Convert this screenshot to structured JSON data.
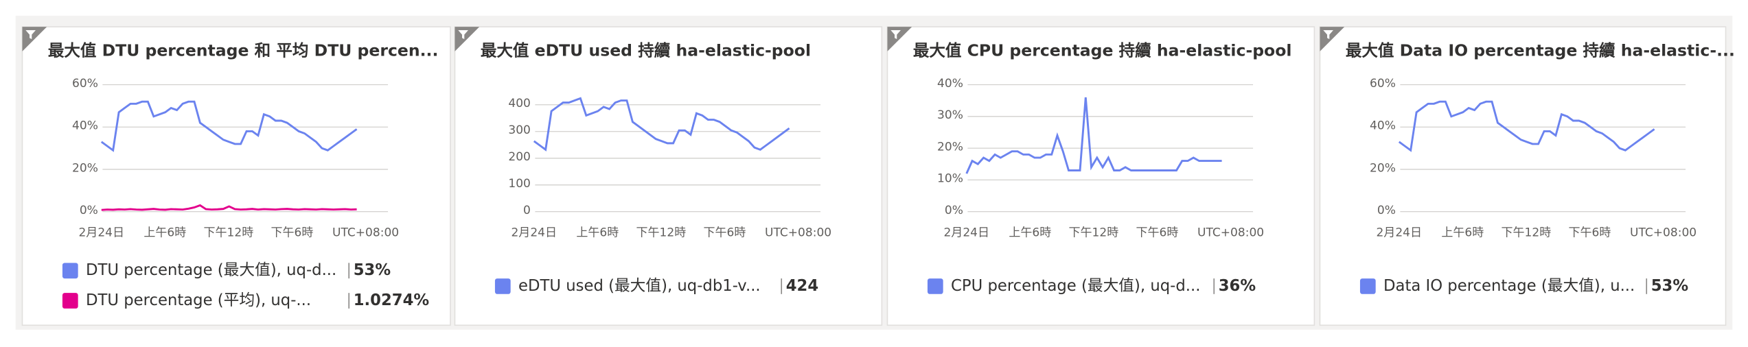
{
  "chart_data": [
    {
      "type": "line",
      "title": "最大值 DTU percentage 和 平均 DTU percen...",
      "xticks": [
        "2月24日",
        "上午6時",
        "下午12時",
        "下午6時"
      ],
      "timezone": "UTC+08:00",
      "ylim": [
        0,
        60
      ],
      "yticks": [
        {
          "value": 0,
          "label": "0%"
        },
        {
          "value": 20,
          "label": "20%"
        },
        {
          "value": 40,
          "label": "40%"
        },
        {
          "value": 60,
          "label": "60%"
        }
      ],
      "grid": true,
      "series": [
        {
          "name": "DTU percentage (最大值), uq-d...",
          "color": "#6b83ef",
          "summary": {
            "value": 53,
            "label": "53%"
          },
          "values": [
            33,
            31,
            29,
            47,
            49,
            51,
            51,
            52,
            52,
            45,
            46,
            47,
            49,
            48,
            51,
            52,
            52,
            42,
            40,
            38,
            36,
            34,
            33,
            32,
            32,
            38,
            38,
            36,
            46,
            45,
            43,
            43,
            42,
            40,
            38,
            37,
            35,
            33,
            30,
            29,
            31,
            33,
            35,
            37,
            39
          ]
        },
        {
          "name": "DTU percentage (平均), uq-...",
          "color": "#e3008c",
          "summary": {
            "value": 1.0274,
            "label": "1.0274%"
          },
          "values": [
            0.8,
            1,
            0.9,
            1.1,
            1,
            1.2,
            1,
            0.9,
            1.1,
            1.3,
            1,
            0.9,
            1.2,
            1.1,
            1,
            1.4,
            2,
            3,
            1.2,
            1,
            1.1,
            1.3,
            2.5,
            1.2,
            1,
            1.1,
            1.3,
            1,
            1.2,
            1.1,
            1,
            1.2,
            1.3,
            1.1,
            1,
            1.2,
            1.1,
            1,
            1.2,
            1.1,
            1,
            1.1,
            1.2,
            1,
            1.1
          ]
        }
      ]
    },
    {
      "type": "line",
      "title": "最大值 eDTU used 持續 ha-elastic-pool",
      "xticks": [
        "2月24日",
        "上午6時",
        "下午12時",
        "下午6時"
      ],
      "timezone": "UTC+08:00",
      "ylim": [
        0,
        475
      ],
      "yticks": [
        0,
        100,
        200,
        300,
        400
      ],
      "grid": true,
      "series": [
        {
          "name": "eDTU used (最大值), uq-db1-v...",
          "color": "#6b83ef",
          "summary": {
            "value": 424,
            "label": "424"
          },
          "values": [
            264,
            248,
            232,
            376,
            392,
            408,
            408,
            416,
            424,
            360,
            368,
            376,
            392,
            384,
            408,
            416,
            416,
            336,
            320,
            304,
            288,
            272,
            264,
            256,
            256,
            304,
            304,
            288,
            368,
            360,
            344,
            344,
            336,
            320,
            304,
            296,
            280,
            264,
            240,
            232,
            248,
            264,
            280,
            296,
            312
          ]
        }
      ]
    },
    {
      "type": "line",
      "title": "最大值 CPU percentage 持續 ha-elastic-pool",
      "xticks": [
        "2月24日",
        "上午6時",
        "下午12時",
        "下午6時"
      ],
      "timezone": "UTC+08:00",
      "ylim": [
        0,
        40
      ],
      "yticks": [
        {
          "value": 0,
          "label": "0%"
        },
        {
          "value": 10,
          "label": "10%"
        },
        {
          "value": 20,
          "label": "20%"
        },
        {
          "value": 30,
          "label": "30%"
        },
        {
          "value": 40,
          "label": "40%"
        }
      ],
      "grid": true,
      "series": [
        {
          "name": "CPU percentage (最大值), uq-d...",
          "color": "#6b83ef",
          "summary": {
            "value": 36,
            "label": "36%"
          },
          "values": [
            12,
            16,
            15,
            17,
            16,
            18,
            17,
            18,
            19,
            19,
            18,
            18,
            17,
            17,
            18,
            18,
            24,
            19,
            13,
            13,
            13,
            36,
            14,
            17,
            14,
            17,
            13,
            13,
            14,
            13,
            13,
            13,
            13,
            13,
            13,
            13,
            13,
            13,
            16,
            16,
            17,
            16,
            16,
            16,
            16,
            16
          ]
        }
      ]
    },
    {
      "type": "line",
      "title": "最大值 Data IO percentage 持續 ha-elastic-...",
      "xticks": [
        "2月24日",
        "上午6時",
        "下午12時",
        "下午6時"
      ],
      "timezone": "UTC+08:00",
      "ylim": [
        0,
        60
      ],
      "yticks": [
        {
          "value": 0,
          "label": "0%"
        },
        {
          "value": 20,
          "label": "20%"
        },
        {
          "value": 40,
          "label": "40%"
        },
        {
          "value": 60,
          "label": "60%"
        }
      ],
      "grid": true,
      "series": [
        {
          "name": "Data IO percentage (最大值), u...",
          "color": "#6b83ef",
          "summary": {
            "value": 53,
            "label": "53%"
          },
          "values": [
            33,
            31,
            29,
            47,
            49,
            51,
            51,
            52,
            52,
            45,
            46,
            47,
            49,
            48,
            51,
            52,
            52,
            42,
            40,
            38,
            36,
            34,
            33,
            32,
            32,
            38,
            38,
            36,
            46,
            45,
            43,
            43,
            42,
            40,
            38,
            37,
            35,
            33,
            30,
            29,
            31,
            33,
            35,
            37,
            39
          ]
        }
      ]
    }
  ]
}
